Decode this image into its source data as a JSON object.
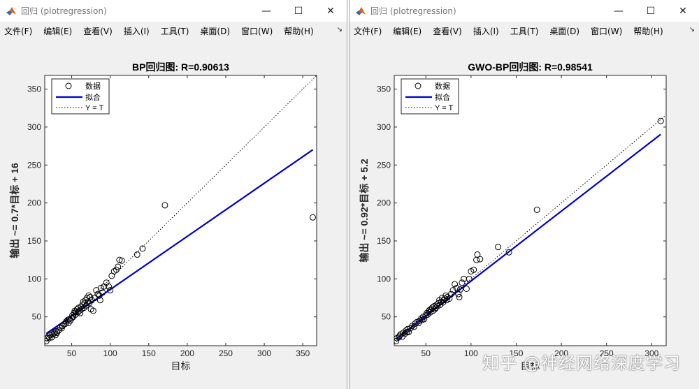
{
  "windows": [
    {
      "title": "回归 (plotregression)",
      "menu": [
        "文件(F)",
        "编辑(E)",
        "查看(V)",
        "插入(I)",
        "工具(T)",
        "桌面(D)",
        "窗口(W)",
        "帮助(H)"
      ]
    },
    {
      "title": "回归 (plotregression)",
      "menu": [
        "文件(F)",
        "编辑(E)",
        "查看(V)",
        "插入(I)",
        "工具(T)",
        "桌面(D)",
        "窗口(W)",
        "帮助(H)"
      ]
    }
  ],
  "window_controls": {
    "minimize": "—",
    "maximize": "☐",
    "close": "✕"
  },
  "menu_overflow": "↘",
  "watermark": "知乎 @神经网络深度学习",
  "chart_data": [
    {
      "type": "scatter",
      "title": "BP回归图: R=0.90613",
      "xlabel": "目标",
      "ylabel": "输出 ~= 0.7*目标 + 16",
      "xlim": [
        15,
        368
      ],
      "ylim": [
        12,
        368
      ],
      "xticks": [
        50,
        100,
        150,
        200,
        250,
        300,
        350
      ],
      "yticks": [
        50,
        100,
        150,
        200,
        250,
        300,
        350
      ],
      "legend_position": "top-left",
      "legend": [
        "数据",
        "拟合",
        "Y = T"
      ],
      "fit": {
        "slope": 0.7,
        "intercept": 16
      },
      "data_color": "#000000",
      "fit_color": "#0000c8",
      "identity_color": "#000000",
      "points": [
        [
          17,
          18
        ],
        [
          18,
          22
        ],
        [
          20,
          24
        ],
        [
          21,
          22
        ],
        [
          22,
          26
        ],
        [
          24,
          23
        ],
        [
          25,
          27
        ],
        [
          27,
          28
        ],
        [
          28,
          30
        ],
        [
          29,
          26
        ],
        [
          30,
          31
        ],
        [
          31,
          29
        ],
        [
          33,
          32
        ],
        [
          35,
          36
        ],
        [
          37,
          35
        ],
        [
          38,
          38
        ],
        [
          40,
          40
        ],
        [
          42,
          41
        ],
        [
          43,
          44
        ],
        [
          45,
          46
        ],
        [
          46,
          42
        ],
        [
          47,
          47
        ],
        [
          48,
          45
        ],
        [
          50,
          48
        ],
        [
          51,
          52
        ],
        [
          52,
          50
        ],
        [
          53,
          55
        ],
        [
          54,
          58
        ],
        [
          55,
          53
        ],
        [
          56,
          57
        ],
        [
          57,
          60
        ],
        [
          58,
          56
        ],
        [
          59,
          62
        ],
        [
          60,
          58
        ],
        [
          61,
          55
        ],
        [
          62,
          63
        ],
        [
          63,
          60
        ],
        [
          64,
          66
        ],
        [
          65,
          70
        ],
        [
          66,
          62
        ],
        [
          67,
          68
        ],
        [
          68,
          72
        ],
        [
          69,
          65
        ],
        [
          70,
          75
        ],
        [
          71,
          70
        ],
        [
          72,
          78
        ],
        [
          73,
          68
        ],
        [
          74,
          76
        ],
        [
          75,
          60
        ],
        [
          76,
          72
        ],
        [
          78,
          58
        ],
        [
          80,
          75
        ],
        [
          82,
          85
        ],
        [
          84,
          80
        ],
        [
          86,
          78
        ],
        [
          87,
          72
        ],
        [
          88,
          88
        ],
        [
          90,
          82
        ],
        [
          92,
          90
        ],
        [
          95,
          95
        ],
        [
          98,
          90
        ],
        [
          100,
          85
        ],
        [
          102,
          104
        ],
        [
          105,
          110
        ],
        [
          108,
          112
        ],
        [
          110,
          116
        ],
        [
          112,
          125
        ],
        [
          115,
          124
        ],
        [
          135,
          132
        ],
        [
          142,
          140
        ],
        [
          171,
          197
        ],
        [
          363,
          181
        ]
      ]
    },
    {
      "type": "scatter",
      "title": "GWO-BP回归图: R=0.98541",
      "xlabel": "目标",
      "ylabel": "输出 ~= 0.92*目标 + 5.2",
      "xlim": [
        15,
        316
      ],
      "ylim": [
        12,
        368
      ],
      "xticks": [
        50,
        100,
        150,
        200,
        250,
        300
      ],
      "yticks": [
        50,
        100,
        150,
        200,
        250,
        300,
        350
      ],
      "legend_position": "top-left",
      "legend": [
        "数据",
        "拟合",
        "Y = T"
      ],
      "fit": {
        "slope": 0.92,
        "intercept": 5.2
      },
      "data_color": "#000000",
      "fit_color": "#0000c8",
      "identity_color": "#000000",
      "points": [
        [
          17,
          18
        ],
        [
          18,
          22
        ],
        [
          20,
          23
        ],
        [
          21,
          25
        ],
        [
          22,
          27
        ],
        [
          24,
          24
        ],
        [
          25,
          29
        ],
        [
          27,
          28
        ],
        [
          28,
          32
        ],
        [
          29,
          30
        ],
        [
          30,
          34
        ],
        [
          31,
          30
        ],
        [
          33,
          35
        ],
        [
          35,
          38
        ],
        [
          37,
          37
        ],
        [
          38,
          41
        ],
        [
          40,
          43
        ],
        [
          42,
          42
        ],
        [
          43,
          45
        ],
        [
          45,
          48
        ],
        [
          46,
          46
        ],
        [
          47,
          50
        ],
        [
          48,
          47
        ],
        [
          50,
          52
        ],
        [
          51,
          55
        ],
        [
          52,
          53
        ],
        [
          53,
          57
        ],
        [
          54,
          59
        ],
        [
          55,
          56
        ],
        [
          56,
          60
        ],
        [
          57,
          62
        ],
        [
          58,
          58
        ],
        [
          59,
          64
        ],
        [
          60,
          60
        ],
        [
          61,
          62
        ],
        [
          62,
          66
        ],
        [
          63,
          64
        ],
        [
          64,
          68
        ],
        [
          65,
          72
        ],
        [
          66,
          66
        ],
        [
          67,
          70
        ],
        [
          68,
          75
        ],
        [
          69,
          69
        ],
        [
          70,
          72
        ],
        [
          71,
          74
        ],
        [
          72,
          78
        ],
        [
          73,
          72
        ],
        [
          74,
          76
        ],
        [
          76,
          74
        ],
        [
          78,
          80
        ],
        [
          80,
          85
        ],
        [
          82,
          93
        ],
        [
          84,
          88
        ],
        [
          86,
          80
        ],
        [
          87,
          76
        ],
        [
          88,
          86
        ],
        [
          90,
          95
        ],
        [
          92,
          100
        ],
        [
          95,
          87
        ],
        [
          98,
          100
        ],
        [
          100,
          110
        ],
        [
          103,
          112
        ],
        [
          106,
          125
        ],
        [
          107,
          132
        ],
        [
          110,
          126
        ],
        [
          130,
          142
        ],
        [
          142,
          135
        ],
        [
          173,
          191
        ],
        [
          310,
          308
        ]
      ]
    }
  ]
}
